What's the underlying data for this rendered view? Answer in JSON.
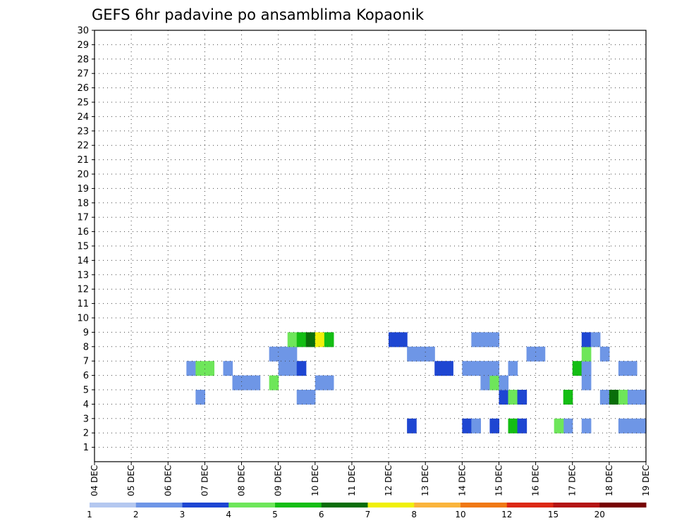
{
  "chart_data": {
    "type": "heatmap",
    "title": "GEFS 6hr padavine po ansamblima Kopaonik",
    "x_ticks": [
      "04 DEC",
      "05 DEC",
      "06 DEC",
      "07 DEC",
      "08 DEC",
      "09 DEC",
      "10 DEC",
      "11 DEC",
      "12 DEC",
      "13 DEC",
      "14 DEC",
      "15 DEC",
      "16 DEC",
      "17 DEC",
      "18 DEC",
      "19 DEC"
    ],
    "x_steps_per_day": 4,
    "y_ticks": [
      "1",
      "2",
      "3",
      "4",
      "5",
      "6",
      "7",
      "8",
      "9",
      "10",
      "11",
      "12",
      "13",
      "14",
      "15",
      "16",
      "17",
      "18",
      "19",
      "20",
      "21",
      "22",
      "23",
      "24",
      "25",
      "26",
      "27",
      "28",
      "29",
      "30"
    ],
    "grid": true,
    "legend_position": "bottom",
    "legend_levels": [
      "1",
      "2",
      "3",
      "4",
      "5",
      "6",
      "7",
      "8",
      "10",
      "12",
      "15",
      "20"
    ],
    "legend_colors": [
      "#b4c8f0",
      "#6e96e6",
      "#1e46d2",
      "#6ee65a",
      "#14be14",
      "#0a6e0a",
      "#f0f00a",
      "#fab43c",
      "#f07814",
      "#dc2814",
      "#b41414",
      "#780000"
    ],
    "cells": [
      [
        60,
        0,
        2
      ],
      [
        61,
        0,
        2
      ],
      [
        62,
        0,
        3
      ],
      [
        63,
        0,
        3
      ],
      [
        64,
        0,
        1
      ],
      [
        68,
        0,
        1
      ],
      [
        69,
        0,
        3
      ],
      [
        71,
        0,
        6
      ],
      [
        73,
        0,
        2
      ],
      [
        61,
        1,
        2
      ],
      [
        62,
        1,
        2
      ],
      [
        63,
        1,
        2
      ],
      [
        64,
        1,
        3
      ],
      [
        65,
        1,
        2
      ],
      [
        67,
        1,
        1
      ],
      [
        68,
        1,
        1
      ],
      [
        34,
        2,
        2
      ],
      [
        40,
        2,
        2
      ],
      [
        43,
        2,
        2
      ],
      [
        59,
        2,
        1
      ],
      [
        45,
        2,
        4
      ],
      [
        46,
        2,
        2
      ],
      [
        51,
        2,
        1
      ],
      [
        53,
        2,
        1
      ],
      [
        58,
        2,
        1
      ],
      [
        41,
        2,
        1
      ],
      [
        50,
        2,
        3
      ],
      [
        57,
        2,
        1
      ],
      [
        60,
        3,
        3
      ],
      [
        61,
        3,
        3
      ],
      [
        62,
        3,
        2
      ],
      [
        63,
        3,
        2
      ],
      [
        64,
        3,
        2
      ],
      [
        65,
        3,
        2
      ],
      [
        66,
        3,
        3
      ],
      [
        67,
        3,
        2
      ],
      [
        68,
        3,
        1
      ],
      [
        69,
        3,
        1
      ],
      [
        70,
        3,
        2
      ],
      [
        71,
        3,
        3
      ],
      [
        72,
        3,
        1
      ],
      [
        73,
        3,
        1
      ],
      [
        74,
        3,
        2
      ],
      [
        75,
        3,
        3
      ],
      [
        76,
        3,
        1
      ],
      [
        73,
        4,
        2
      ],
      [
        64,
        4,
        2
      ],
      [
        71,
        4,
        1
      ],
      [
        72,
        4,
        1
      ],
      [
        58,
        4,
        1
      ],
      [
        59,
        4,
        1
      ],
      [
        70,
        4,
        1
      ],
      [
        74,
        4,
        1
      ],
      [
        11,
        4,
        1
      ],
      [
        22,
        4,
        1
      ],
      [
        23,
        4,
        1
      ],
      [
        44,
        4,
        2
      ],
      [
        45,
        4,
        3
      ],
      [
        46,
        4,
        2
      ],
      [
        51,
        4,
        4
      ],
      [
        55,
        4,
        1
      ],
      [
        56,
        4,
        5
      ],
      [
        57,
        4,
        3
      ],
      [
        58,
        4,
        1
      ],
      [
        61,
        4,
        3
      ],
      [
        62,
        4,
        9
      ],
      [
        63,
        4,
        3
      ],
      [
        64,
        4,
        1
      ],
      [
        68,
        4,
        1
      ],
      [
        72,
        4,
        3
      ],
      [
        73,
        4,
        1
      ],
      [
        74,
        4,
        2
      ],
      [
        78,
        4,
        1
      ],
      [
        82,
        4,
        1
      ],
      [
        96,
        4,
        1
      ],
      [
        97,
        4,
        3
      ],
      [
        98,
        4,
        7
      ],
      [
        113,
        4,
        5
      ],
      [
        114,
        4,
        3
      ],
      [
        115,
        4,
        11
      ],
      [
        89,
        4,
        1
      ],
      [
        90,
        4,
        1
      ],
      [
        95,
        4,
        1
      ],
      [
        15,
        5,
        1
      ],
      [
        16,
        5,
        1
      ],
      [
        17,
        5,
        1
      ],
      [
        19,
        5,
        3
      ],
      [
        24,
        5,
        1
      ],
      [
        25,
        5,
        1
      ],
      [
        42,
        5,
        1
      ],
      [
        43,
        5,
        3
      ],
      [
        44,
        5,
        1
      ],
      [
        53,
        5,
        1
      ],
      [
        60,
        5,
        1
      ],
      [
        61,
        5,
        1
      ],
      [
        71,
        5,
        4
      ],
      [
        72,
        5,
        1
      ],
      [
        87,
        5,
        1
      ],
      [
        88,
        5,
        2
      ],
      [
        89,
        5,
        1
      ],
      [
        90,
        5,
        1
      ],
      [
        37,
        6,
        2
      ],
      [
        38,
        6,
        2
      ],
      [
        42,
        6,
        1
      ],
      [
        52,
        6,
        4
      ],
      [
        53,
        6,
        1
      ],
      [
        57,
        6,
        1
      ],
      [
        58,
        6,
        1
      ],
      [
        80,
        6,
        3
      ],
      [
        86,
        6,
        1
      ],
      [
        87,
        6,
        3
      ],
      [
        88,
        6,
        1
      ],
      [
        10,
        6,
        1
      ],
      [
        11,
        6,
        3
      ],
      [
        12,
        6,
        3
      ],
      [
        14,
        6,
        1
      ],
      [
        20,
        6,
        1
      ],
      [
        21,
        6,
        1
      ],
      [
        22,
        6,
        2
      ],
      [
        40,
        6,
        1
      ],
      [
        41,
        6,
        1
      ],
      [
        43,
        6,
        1
      ],
      [
        45,
        6,
        1
      ],
      [
        53,
        6,
        1
      ],
      [
        61,
        6,
        2
      ],
      [
        62,
        6,
        1
      ],
      [
        63,
        6,
        2
      ],
      [
        77,
        6,
        1
      ],
      [
        78,
        6,
        1
      ],
      [
        79,
        6,
        1
      ],
      [
        114,
        6,
        1
      ],
      [
        115,
        6,
        1
      ],
      [
        19,
        7,
        1
      ],
      [
        20,
        7,
        1
      ],
      [
        21,
        7,
        1
      ],
      [
        34,
        7,
        1
      ],
      [
        35,
        7,
        1
      ],
      [
        36,
        7,
        1
      ],
      [
        47,
        7,
        1
      ],
      [
        48,
        7,
        1
      ],
      [
        53,
        7,
        3
      ],
      [
        55,
        7,
        1
      ],
      [
        61,
        7,
        1
      ],
      [
        62,
        7,
        1
      ],
      [
        63,
        7,
        2
      ],
      [
        64,
        7,
        1
      ],
      [
        65,
        7,
        2
      ],
      [
        68,
        7,
        1
      ],
      [
        69,
        7,
        2
      ],
      [
        70,
        7,
        1
      ],
      [
        71,
        7,
        1
      ],
      [
        79,
        7,
        1
      ],
      [
        80,
        7,
        1
      ],
      [
        81,
        7,
        1
      ],
      [
        82,
        7,
        1
      ],
      [
        85,
        7,
        1
      ],
      [
        86,
        7,
        1
      ],
      [
        87,
        7,
        1
      ],
      [
        88,
        7,
        1
      ],
      [
        93,
        7,
        1
      ],
      [
        94,
        7,
        1
      ],
      [
        95,
        7,
        1
      ],
      [
        96,
        7,
        1
      ],
      [
        97,
        7,
        1
      ],
      [
        21,
        8,
        3
      ],
      [
        22,
        8,
        4
      ],
      [
        23,
        8,
        5
      ],
      [
        24,
        8,
        6
      ],
      [
        25,
        8,
        4
      ],
      [
        32,
        8,
        2
      ],
      [
        33,
        8,
        2
      ],
      [
        41,
        8,
        1
      ],
      [
        42,
        8,
        1
      ],
      [
        43,
        8,
        1
      ],
      [
        53,
        8,
        2
      ],
      [
        54,
        8,
        1
      ],
      [
        61,
        8,
        2
      ],
      [
        67,
        8,
        1
      ],
      [
        68,
        8,
        1
      ],
      [
        75,
        8,
        2
      ],
      [
        76,
        8,
        1
      ],
      [
        81,
        8,
        1
      ],
      [
        87,
        8,
        1
      ],
      [
        88,
        8,
        1
      ],
      [
        90,
        8,
        1
      ],
      [
        91,
        8,
        1
      ],
      [
        92,
        8,
        1
      ]
    ]
  }
}
